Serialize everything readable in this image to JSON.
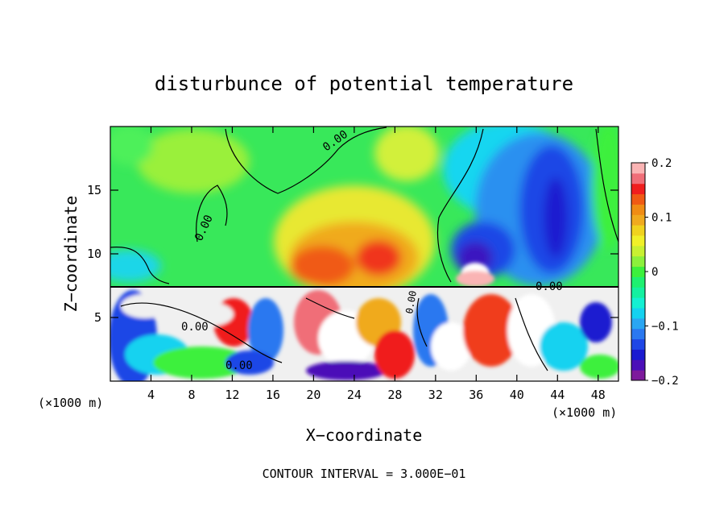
{
  "chart_data": {
    "type": "heatmap",
    "title": "disturbunce of potential temperature",
    "xlabel": "X−coordinate",
    "ylabel": "Z−coordinate",
    "x_unit_left": "(×1000 m)",
    "x_unit_right": "(×1000 m)",
    "footer": "CONTOUR INTERVAL = 3.000E−01",
    "xlim": [
      0,
      50
    ],
    "ylim": [
      0,
      20
    ],
    "x_ticks": [
      4,
      8,
      12,
      16,
      20,
      24,
      28,
      32,
      36,
      40,
      44,
      48
    ],
    "x_tick_labels": [
      "4",
      "8",
      "12",
      "16",
      "20",
      "24",
      "28",
      "32",
      "36",
      "40",
      "44",
      "48"
    ],
    "y_ticks": [
      5,
      10,
      15
    ],
    "y_tick_labels": [
      "5",
      "10",
      "15"
    ],
    "colorbar": {
      "min": -0.2,
      "max": 0.2,
      "ticks": [
        0.2,
        0.1,
        0,
        -0.1,
        -0.2
      ],
      "tick_labels": [
        "0.2",
        "0.1",
        "0",
        "−0.1",
        "−0.2"
      ],
      "colors": [
        "#7d1a9c",
        "#4b0fb8",
        "#1a1ad0",
        "#1e46e6",
        "#2a78f0",
        "#2aa6f2",
        "#14d2f0",
        "#14f0d2",
        "#14f0a0",
        "#1ef070",
        "#3cf03c",
        "#8cf03c",
        "#c8f032",
        "#f0f028",
        "#f0d21e",
        "#f0aa1e",
        "#f08c14",
        "#f05a14",
        "#f01e1e",
        "#f06e78",
        "#fab4b4"
      ]
    },
    "contour_labels": [
      "0.00",
      "0.00",
      "0.00",
      "0.00",
      "0.00",
      "0.00"
    ],
    "values_note": ""
  }
}
